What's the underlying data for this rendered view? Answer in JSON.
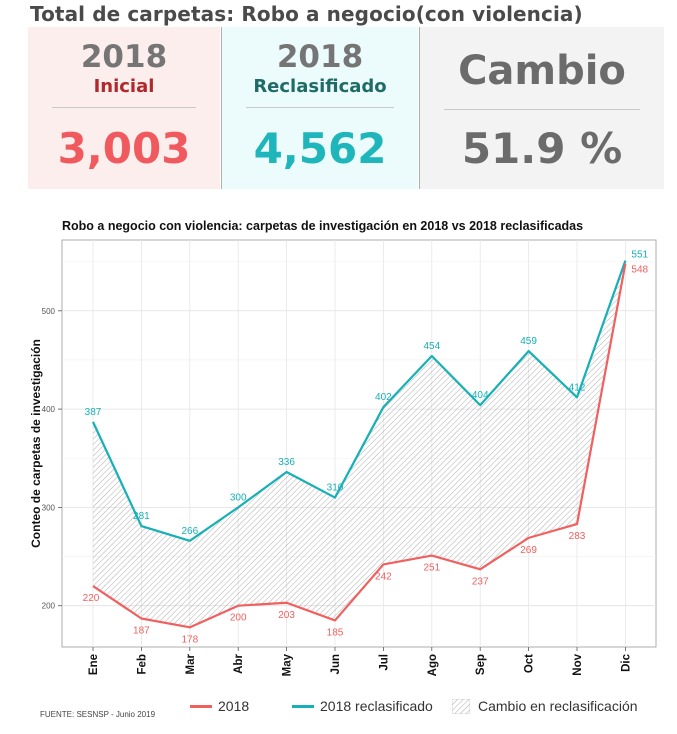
{
  "header": {
    "title": "Total de carpetas: Robo a negocio(con violencia)"
  },
  "panels": {
    "inicial": {
      "year": "2018",
      "label": "Inicial",
      "value": "3,003"
    },
    "reclasificado": {
      "year": "2018",
      "label": "Reclasificado",
      "value": "4,562"
    },
    "cambio": {
      "label": "Cambio",
      "value": "51.9 %"
    }
  },
  "source": "FUENTE: SESNSP - Junio 2019",
  "colors": {
    "series_2018": "#f0605f",
    "series_reclasificado": "#16b0b6",
    "hatch": "#9a9a9a"
  },
  "chart_data": {
    "type": "line",
    "title": "Robo a negocio con violencia: carpetas de investigación en 2018 vs 2018 reclasificadas",
    "xlabel": "",
    "ylabel": "Conteo de carpetas de investigación",
    "categories": [
      "Ene",
      "Feb",
      "Mar",
      "Abr",
      "May",
      "Jun",
      "Jul",
      "Ago",
      "Sep",
      "Oct",
      "Nov",
      "Dic"
    ],
    "series": [
      {
        "name": "2018",
        "values": [
          220,
          187,
          178,
          200,
          203,
          185,
          242,
          251,
          237,
          269,
          283,
          548
        ]
      },
      {
        "name": "2018 reclasificado",
        "values": [
          387,
          281,
          266,
          300,
          336,
          310,
          402,
          454,
          404,
          459,
          412,
          551
        ]
      }
    ],
    "area_label": "Cambio en reclasificación",
    "yticks": [
      200,
      300,
      400,
      500
    ],
    "ylim": [
      158,
      572
    ],
    "grid": true,
    "legend_position": "bottom"
  }
}
